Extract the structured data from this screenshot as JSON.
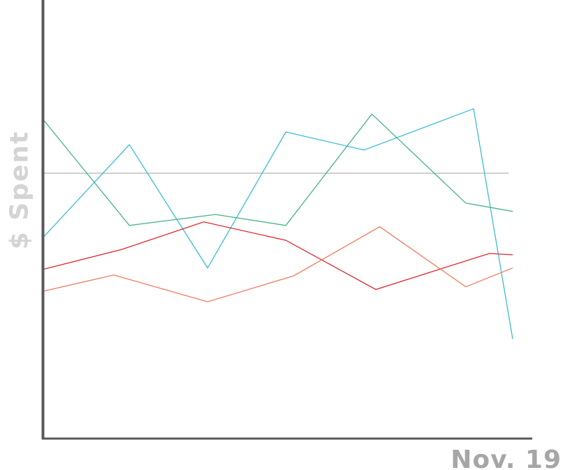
{
  "chart_data": {
    "type": "line",
    "title": "",
    "xlabel": "Nov. 19",
    "ylabel": "$ Spent",
    "x": [
      0,
      1,
      2,
      3,
      4,
      5,
      6
    ],
    "ylim": [
      0,
      100
    ],
    "grid": false,
    "legend": "none",
    "reference_line": {
      "value": 60.5,
      "color": "#a0a0a0"
    },
    "axis_color": "#595959",
    "series": [
      {
        "color": "#3bbbd8",
        "points": [
          [
            0,
            45.9
          ],
          [
            1.1,
            67.0
          ],
          [
            2.1,
            38.9
          ],
          [
            3.1,
            69.9
          ],
          [
            4.1,
            65.8
          ],
          [
            5.5,
            75.2
          ],
          [
            6.0,
            22.7
          ]
        ]
      },
      {
        "color": "#44b38a",
        "points": [
          [
            0,
            72.7
          ],
          [
            1.1,
            48.6
          ],
          [
            2.2,
            51.1
          ],
          [
            3.1,
            48.6
          ],
          [
            4.2,
            74.0
          ],
          [
            5.4,
            53.7
          ],
          [
            6.0,
            51.8
          ]
        ]
      },
      {
        "color": "#e0272e",
        "points": [
          [
            0,
            38.6
          ],
          [
            1.0,
            43.1
          ],
          [
            2.05,
            49.4
          ],
          [
            3.1,
            45.2
          ],
          [
            4.25,
            34.0
          ],
          [
            5.7,
            42.2
          ],
          [
            6.0,
            41.9
          ]
        ]
      },
      {
        "color": "#f07a5d",
        "points": [
          [
            0,
            33.6
          ],
          [
            0.9,
            37.3
          ],
          [
            2.1,
            31.2
          ],
          [
            3.2,
            37.1
          ],
          [
            4.3,
            48.3
          ],
          [
            5.4,
            34.6
          ],
          [
            6.0,
            38.9
          ]
        ]
      }
    ]
  }
}
